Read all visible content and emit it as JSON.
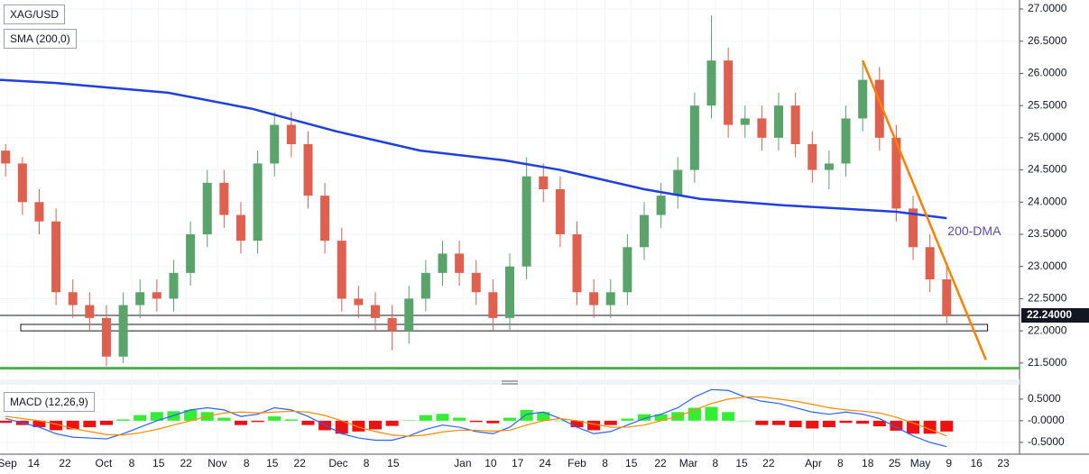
{
  "chart_data": [
    {
      "type": "candlestick",
      "title": "XAG/USD",
      "indicator": "SMA (200,0)",
      "up_color": "#5aa36b",
      "down_color": "#e0604f",
      "x": [
        1,
        4,
        7,
        10,
        13,
        16,
        19,
        22,
        25,
        28,
        31,
        34,
        37,
        40,
        43,
        46,
        49,
        52,
        55,
        58,
        61,
        64,
        67,
        70,
        73,
        76,
        79,
        82,
        85,
        88,
        91,
        94,
        97,
        100,
        103,
        106,
        109,
        112,
        115,
        118,
        121,
        124,
        127,
        130,
        133,
        136,
        139,
        142,
        145,
        148,
        151,
        154,
        157,
        160,
        163,
        166,
        169
      ],
      "open": [
        24.8,
        24.6,
        24.0,
        23.7,
        22.6,
        22.4,
        22.2,
        21.6,
        22.4,
        22.6,
        22.5,
        22.9,
        23.5,
        24.3,
        23.8,
        23.4,
        24.6,
        25.2,
        24.9,
        24.1,
        23.4,
        22.5,
        22.4,
        22.2,
        22.0,
        22.5,
        22.9,
        23.2,
        22.9,
        22.6,
        22.2,
        23.0,
        24.4,
        24.2,
        23.5,
        22.6,
        22.4,
        22.6,
        23.3,
        23.8,
        24.1,
        24.5,
        25.5,
        26.2,
        25.2,
        25.3,
        25.0,
        25.5,
        24.9,
        24.5,
        24.6,
        25.3,
        25.9,
        25.0,
        23.9,
        23.3,
        22.8
      ],
      "high": [
        24.9,
        24.7,
        24.2,
        23.9,
        22.8,
        22.6,
        22.4,
        22.6,
        22.8,
        22.8,
        23.1,
        23.7,
        24.5,
        24.5,
        24.0,
        24.8,
        25.4,
        25.4,
        25.1,
        24.3,
        23.6,
        22.7,
        22.6,
        22.4,
        22.7,
        23.1,
        23.4,
        23.4,
        23.1,
        22.8,
        23.2,
        24.7,
        24.6,
        24.4,
        23.7,
        22.8,
        22.8,
        23.5,
        24.0,
        24.3,
        24.7,
        25.7,
        26.9,
        26.4,
        25.5,
        25.5,
        25.7,
        25.7,
        25.1,
        24.8,
        25.5,
        26.2,
        26.1,
        25.2,
        24.1,
        23.5,
        23.0
      ],
      "low": [
        24.4,
        23.8,
        23.5,
        22.4,
        22.2,
        22.0,
        21.45,
        21.5,
        22.2,
        22.3,
        22.3,
        22.7,
        23.3,
        23.6,
        23.2,
        23.2,
        24.4,
        24.7,
        23.9,
        23.2,
        22.3,
        22.2,
        22.0,
        21.7,
        21.8,
        22.3,
        22.7,
        22.7,
        22.4,
        22.0,
        22.0,
        22.8,
        24.0,
        23.3,
        22.4,
        22.2,
        22.2,
        22.4,
        23.1,
        23.6,
        23.9,
        24.3,
        25.3,
        25.0,
        25.0,
        24.8,
        24.8,
        24.7,
        24.3,
        24.2,
        24.4,
        25.1,
        24.8,
        23.7,
        23.1,
        22.6,
        22.1
      ],
      "close": [
        24.6,
        24.0,
        23.7,
        22.6,
        22.4,
        22.2,
        21.6,
        22.4,
        22.6,
        22.5,
        22.9,
        23.5,
        24.3,
        23.8,
        23.4,
        24.6,
        25.2,
        24.9,
        24.1,
        23.4,
        22.5,
        22.4,
        22.2,
        22.0,
        22.5,
        22.9,
        23.2,
        22.9,
        22.6,
        22.2,
        23.0,
        24.4,
        24.2,
        23.5,
        22.6,
        22.4,
        22.6,
        23.3,
        23.8,
        24.1,
        24.5,
        25.5,
        26.2,
        25.2,
        25.3,
        25.0,
        25.5,
        24.9,
        24.5,
        24.6,
        25.3,
        25.9,
        25.0,
        23.9,
        23.3,
        22.8,
        22.24
      ],
      "sma": {
        "color": "#1f3fdf",
        "x": [
          0,
          10,
          30,
          45,
          60,
          75,
          90,
          100,
          115,
          125,
          140,
          150,
          160,
          169
        ],
        "values": [
          25.9,
          25.85,
          25.7,
          25.45,
          25.1,
          24.8,
          24.65,
          24.5,
          24.2,
          24.05,
          23.95,
          23.9,
          23.85,
          23.75
        ]
      },
      "annotation": "200-DMA",
      "trendline": {
        "color": "#ff8000",
        "x": [
          154,
          176
        ],
        "values": [
          26.2,
          21.55
        ]
      },
      "support_zone": {
        "x": [
          3.7,
          176.3
        ],
        "values": [
          22.1,
          22.0
        ]
      },
      "support_line": {
        "value": 21.42,
        "color": "#4caf50"
      },
      "last_price": {
        "value": 22.24,
        "label": "22.24000"
      },
      "ylim": [
        21.26,
        27.14
      ],
      "yticks": [
        {
          "value": 21.5,
          "label": "21.5000"
        },
        {
          "value": 22,
          "label": "22.0000"
        },
        {
          "value": 22.5,
          "label": "22.5000"
        },
        {
          "value": 23,
          "label": "23.0000"
        },
        {
          "value": 23.5,
          "label": "23.5000"
        },
        {
          "value": 24,
          "label": "24.0000"
        },
        {
          "value": 24.5,
          "label": "24.5000"
        },
        {
          "value": 25,
          "label": "25.0000"
        },
        {
          "value": 25.5,
          "label": "25.5000"
        },
        {
          "value": 26,
          "label": "26.0000"
        },
        {
          "value": 26.5,
          "label": "26.5000"
        },
        {
          "value": 27,
          "label": "27.0000"
        }
      ],
      "xlim": [
        0,
        182
      ],
      "xticks": [
        {
          "value": 1.3,
          "label": "Sep"
        },
        {
          "value": 6,
          "label": "14"
        },
        {
          "value": 11.6,
          "label": "22"
        },
        {
          "value": 18.5,
          "label": "Oct"
        },
        {
          "value": 23.5,
          "label": "8"
        },
        {
          "value": 28.3,
          "label": "15"
        },
        {
          "value": 33.2,
          "label": "22"
        },
        {
          "value": 38.8,
          "label": "Nov"
        },
        {
          "value": 44,
          "label": "8"
        },
        {
          "value": 48.6,
          "label": "15"
        },
        {
          "value": 53.5,
          "label": "22"
        },
        {
          "value": 60.4,
          "label": "Dec"
        },
        {
          "value": 65.4,
          "label": "8"
        },
        {
          "value": 70.2,
          "label": "15"
        },
        {
          "value": 82.6,
          "label": "Jan"
        },
        {
          "value": 87.6,
          "label": "10"
        },
        {
          "value": 92.4,
          "label": "17"
        },
        {
          "value": 97.3,
          "label": "24"
        },
        {
          "value": 103,
          "label": "Feb"
        },
        {
          "value": 108,
          "label": "8"
        },
        {
          "value": 112.7,
          "label": "15"
        },
        {
          "value": 117.9,
          "label": "22"
        },
        {
          "value": 122.9,
          "label": "Mar"
        },
        {
          "value": 127.7,
          "label": "8"
        },
        {
          "value": 132.4,
          "label": "15"
        },
        {
          "value": 137.2,
          "label": "22"
        },
        {
          "value": 145.2,
          "label": "Apr"
        },
        {
          "value": 150,
          "label": "8"
        },
        {
          "value": 154.9,
          "label": "18"
        },
        {
          "value": 159.7,
          "label": "25"
        },
        {
          "value": 164.3,
          "label": "May"
        },
        {
          "value": 169.4,
          "label": "9"
        },
        {
          "value": 174.3,
          "label": "16"
        },
        {
          "value": 179.1,
          "label": "23"
        }
      ]
    },
    {
      "type": "macd",
      "title": "MACD (12,26,9)",
      "x": [
        1,
        4,
        7,
        10,
        13,
        16,
        19,
        22,
        25,
        28,
        31,
        34,
        37,
        40,
        43,
        46,
        49,
        52,
        55,
        58,
        61,
        64,
        67,
        70,
        73,
        76,
        79,
        82,
        85,
        88,
        91,
        94,
        97,
        100,
        103,
        106,
        109,
        112,
        115,
        118,
        121,
        124,
        127,
        130,
        133,
        136,
        139,
        142,
        145,
        148,
        151,
        154,
        157,
        160,
        163,
        166,
        169
      ],
      "series": [
        {
          "color": "#2962ff",
          "values": [
            0.05,
            -0.05,
            -0.15,
            -0.3,
            -0.38,
            -0.4,
            -0.42,
            -0.3,
            -0.15,
            0.0,
            0.12,
            0.25,
            0.3,
            0.25,
            0.1,
            0.15,
            0.3,
            0.25,
            0.1,
            -0.1,
            -0.3,
            -0.4,
            -0.45,
            -0.45,
            -0.35,
            -0.2,
            -0.1,
            -0.15,
            -0.25,
            -0.3,
            -0.15,
            0.15,
            0.2,
            0.05,
            -0.15,
            -0.3,
            -0.25,
            -0.1,
            0.05,
            0.15,
            0.3,
            0.55,
            0.72,
            0.7,
            0.55,
            0.45,
            0.4,
            0.3,
            0.2,
            0.15,
            0.2,
            0.15,
            0.05,
            -0.15,
            -0.35,
            -0.5,
            -0.6
          ]
        },
        {
          "color": "#ff8c00",
          "values": [
            0.1,
            0.05,
            0.0,
            -0.08,
            -0.18,
            -0.25,
            -0.32,
            -0.33,
            -0.28,
            -0.2,
            -0.1,
            0.0,
            0.1,
            0.18,
            0.2,
            0.18,
            0.2,
            0.22,
            0.2,
            0.12,
            0.0,
            -0.15,
            -0.25,
            -0.33,
            -0.36,
            -0.33,
            -0.26,
            -0.22,
            -0.22,
            -0.24,
            -0.22,
            -0.1,
            0.0,
            0.05,
            0.0,
            -0.08,
            -0.15,
            -0.15,
            -0.1,
            0.0,
            0.1,
            0.25,
            0.4,
            0.5,
            0.55,
            0.55,
            0.5,
            0.45,
            0.38,
            0.3,
            0.25,
            0.22,
            0.18,
            0.08,
            -0.05,
            -0.2,
            -0.35
          ]
        }
      ],
      "histogram": {
        "up_color": "#33ee33",
        "down_color": "#ee1111",
        "values": [
          -0.05,
          -0.1,
          -0.15,
          -0.22,
          -0.2,
          -0.15,
          -0.1,
          0.03,
          0.13,
          0.2,
          0.22,
          0.25,
          0.2,
          0.07,
          -0.1,
          -0.03,
          0.1,
          0.03,
          -0.1,
          -0.22,
          -0.3,
          -0.25,
          -0.2,
          -0.12,
          0.01,
          0.13,
          0.16,
          0.07,
          -0.03,
          -0.06,
          0.07,
          0.25,
          0.2,
          0.0,
          -0.15,
          -0.22,
          -0.1,
          0.05,
          0.15,
          0.15,
          0.2,
          0.3,
          0.32,
          0.2,
          0.0,
          -0.1,
          -0.1,
          -0.15,
          -0.18,
          -0.15,
          -0.05,
          -0.07,
          -0.13,
          -0.23,
          -0.3,
          -0.3,
          -0.25
        ]
      },
      "ylim": [
        -0.69,
        0.81
      ],
      "yticks": [
        {
          "value": 0.5,
          "label": "0.5000"
        },
        {
          "value": 0,
          "label": "-0.0000"
        },
        {
          "value": -0.5,
          "label": "-0.5000"
        }
      ]
    }
  ]
}
